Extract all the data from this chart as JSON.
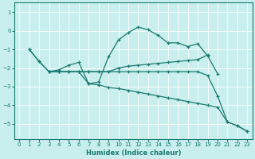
{
  "xlabel": "Humidex (Indice chaleur)",
  "bg_color": "#c8eeed",
  "grid_color": "#ffffff",
  "line_color": "#1a7a6e",
  "xlim": [
    -0.5,
    23.5
  ],
  "ylim": [
    -5.8,
    1.5
  ],
  "yticks": [
    1,
    0,
    -1,
    -2,
    -3,
    -4,
    -5
  ],
  "xticks": [
    0,
    1,
    2,
    3,
    4,
    5,
    6,
    7,
    8,
    9,
    10,
    11,
    12,
    13,
    14,
    15,
    16,
    17,
    18,
    19,
    20,
    21,
    22,
    23
  ],
  "lines": [
    {
      "x": [
        1,
        2,
        3,
        4,
        5,
        6,
        7,
        8,
        9,
        10,
        11,
        12,
        13,
        14,
        15,
        16,
        17,
        18,
        19,
        20
      ],
      "y": [
        -1.0,
        -1.65,
        -2.2,
        -2.1,
        -1.85,
        -1.7,
        -2.85,
        -2.75,
        -1.4,
        -0.5,
        -0.1,
        0.2,
        0.05,
        -0.25,
        -0.65,
        -0.65,
        -0.85,
        -0.7,
        -1.35,
        -2.3
      ]
    },
    {
      "x": [
        3,
        4,
        5,
        6,
        7,
        8,
        9,
        10,
        11,
        12,
        13,
        14,
        15,
        16,
        17,
        18,
        19
      ],
      "y": [
        -2.2,
        -2.2,
        -2.2,
        -2.2,
        -2.2,
        -2.2,
        -2.2,
        -2.0,
        -1.9,
        -1.85,
        -1.8,
        -1.75,
        -1.7,
        -1.65,
        -1.6,
        -1.55,
        -1.3
      ]
    },
    {
      "x": [
        3,
        4,
        5,
        6,
        7,
        8,
        9,
        10,
        11,
        12,
        13,
        14,
        15,
        16,
        17,
        18,
        19,
        20,
        21,
        22,
        23
      ],
      "y": [
        -2.2,
        -2.2,
        -2.2,
        -2.2,
        -2.2,
        -2.2,
        -2.2,
        -2.2,
        -2.2,
        -2.2,
        -2.2,
        -2.2,
        -2.2,
        -2.2,
        -2.2,
        -2.2,
        -2.4,
        -3.5,
        -4.9,
        -5.1,
        -5.4
      ]
    },
    {
      "x": [
        1,
        2,
        3,
        4,
        5,
        6,
        7,
        8,
        9,
        10,
        11,
        12,
        13,
        14,
        15,
        16,
        17,
        18,
        19,
        20,
        21,
        22,
        23
      ],
      "y": [
        -1.0,
        -1.65,
        -2.2,
        -2.2,
        -2.2,
        -2.2,
        -2.85,
        -2.9,
        -3.05,
        -3.1,
        -3.2,
        -3.3,
        -3.4,
        -3.5,
        -3.6,
        -3.7,
        -3.8,
        -3.9,
        -4.0,
        -4.1,
        -4.9,
        -5.1,
        -5.4
      ]
    }
  ]
}
